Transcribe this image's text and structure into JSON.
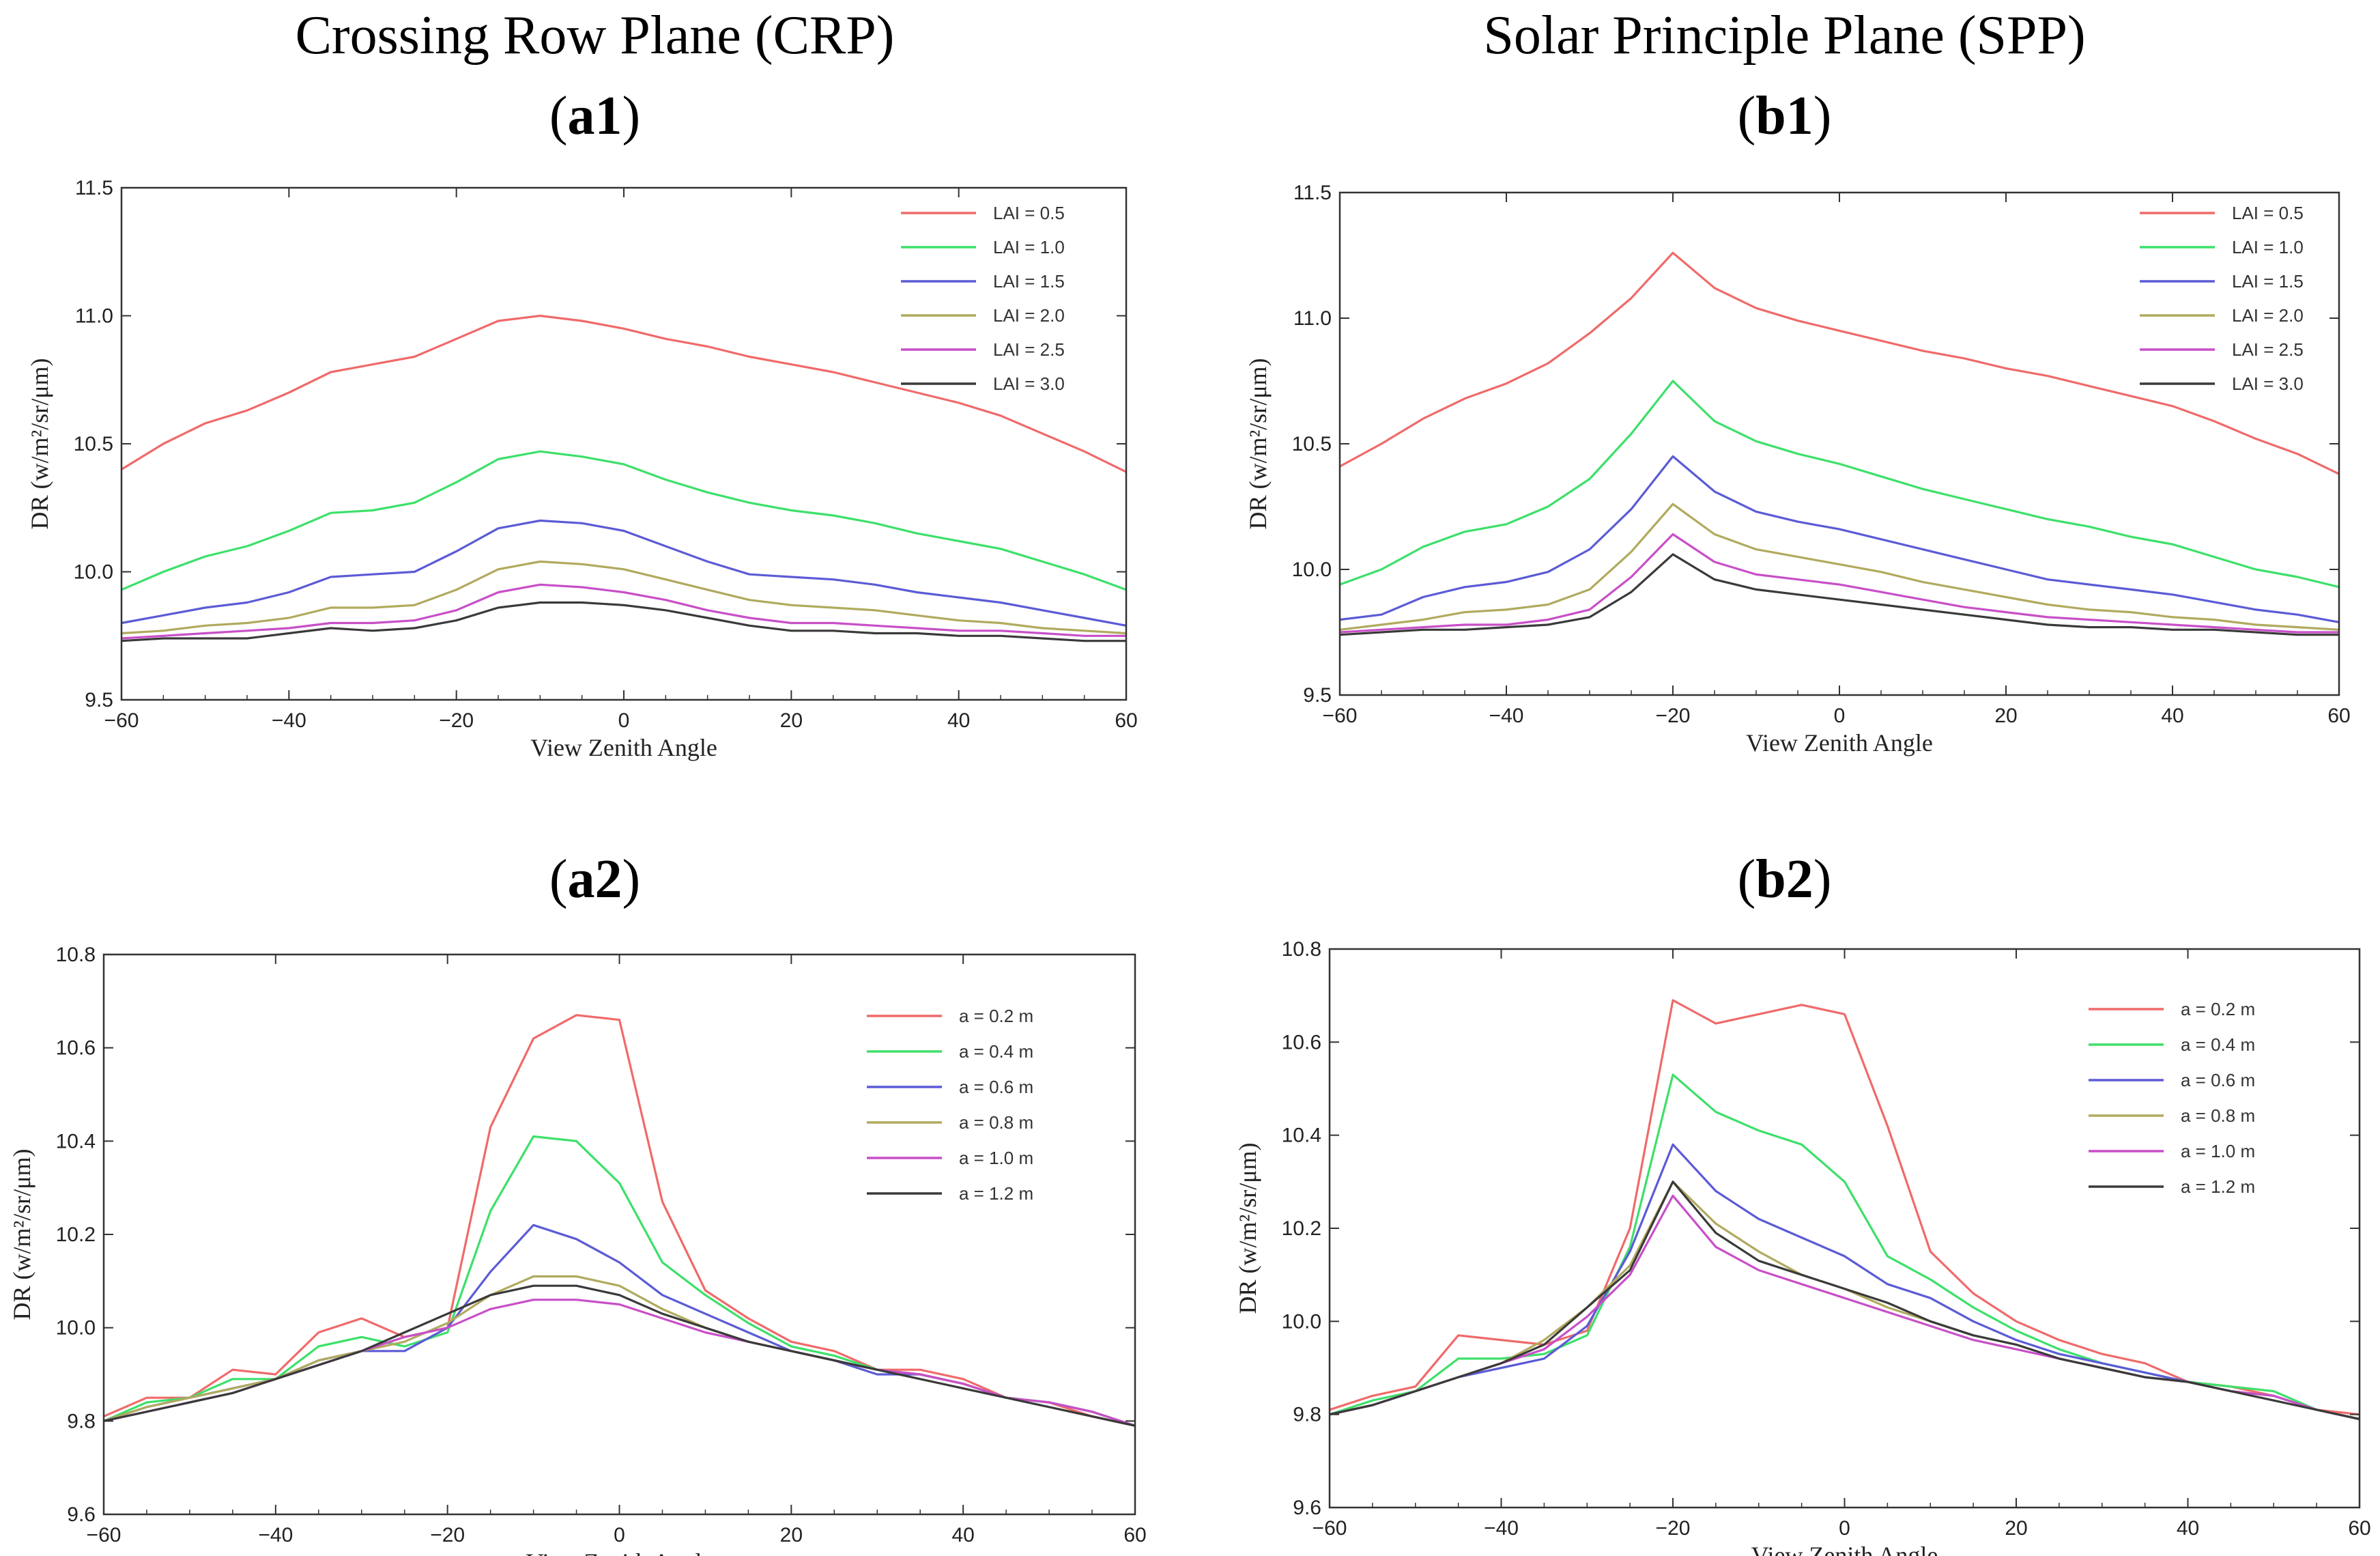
{
  "columns": {
    "left_title": "Crossing Row Plane (CRP)",
    "right_title": "Solar Principle Plane (SPP)"
  },
  "panel_labels": {
    "a1": {
      "open": "(",
      "bold": "a1",
      "close": ")"
    },
    "b1": {
      "open": "(",
      "bold": "b1",
      "close": ")"
    },
    "a2": {
      "open": "(",
      "bold": "a2",
      "close": ")"
    },
    "b2": {
      "open": "(",
      "bold": "b2",
      "close": ")"
    }
  },
  "chart_data": [
    {
      "id": "a1",
      "type": "line",
      "xlabel": "View Zenith Angle",
      "ylabel": "DR (w/m²/sr/μm)",
      "xlim": [
        -60,
        60
      ],
      "ylim": [
        9.5,
        11.5
      ],
      "xticks": [
        -60,
        -40,
        -20,
        0,
        20,
        40,
        60
      ],
      "xtick_labels": [
        "−60",
        "−40",
        "−20",
        "0",
        "20",
        "40",
        "60"
      ],
      "yticks": [
        9.5,
        10.0,
        10.5,
        11.0,
        11.5
      ],
      "ytick_labels": [
        "9.5",
        "10.0",
        "10.5",
        "11.0",
        "11.5"
      ],
      "legend_position": "top-right",
      "x": [
        -60,
        -55,
        -50,
        -45,
        -40,
        -35,
        -30,
        -25,
        -20,
        -15,
        -10,
        -5,
        0,
        5,
        10,
        15,
        20,
        25,
        30,
        35,
        40,
        45,
        50,
        55,
        60
      ],
      "series": [
        {
          "name": "LAI = 0.5",
          "color": "#f06a6a",
          "values": [
            10.4,
            10.5,
            10.58,
            10.63,
            10.7,
            10.78,
            10.81,
            10.84,
            10.91,
            10.98,
            11.0,
            10.98,
            10.95,
            10.91,
            10.88,
            10.84,
            10.81,
            10.78,
            10.74,
            10.7,
            10.66,
            10.61,
            10.54,
            10.47,
            10.39
          ]
        },
        {
          "name": "LAI = 1.0",
          "color": "#3de06a",
          "values": [
            9.93,
            10.0,
            10.06,
            10.1,
            10.16,
            10.23,
            10.24,
            10.27,
            10.35,
            10.44,
            10.47,
            10.45,
            10.42,
            10.36,
            10.31,
            10.27,
            10.24,
            10.22,
            10.19,
            10.15,
            10.12,
            10.09,
            10.04,
            9.99,
            9.93
          ]
        },
        {
          "name": "LAI = 1.5",
          "color": "#5b5bd6",
          "values": [
            9.8,
            9.83,
            9.86,
            9.88,
            9.92,
            9.98,
            9.99,
            10.0,
            10.08,
            10.17,
            10.2,
            10.19,
            10.16,
            10.1,
            10.04,
            9.99,
            9.98,
            9.97,
            9.95,
            9.92,
            9.9,
            9.88,
            9.85,
            9.82,
            9.79
          ]
        },
        {
          "name": "LAI = 2.0",
          "color": "#b0aa5e",
          "values": [
            9.76,
            9.77,
            9.79,
            9.8,
            9.82,
            9.86,
            9.86,
            9.87,
            9.93,
            10.01,
            10.04,
            10.03,
            10.01,
            9.97,
            9.93,
            9.89,
            9.87,
            9.86,
            9.85,
            9.83,
            9.81,
            9.8,
            9.78,
            9.77,
            9.76
          ]
        },
        {
          "name": "LAI = 2.5",
          "color": "#c84fc8",
          "values": [
            9.74,
            9.75,
            9.76,
            9.77,
            9.78,
            9.8,
            9.8,
            9.81,
            9.85,
            9.92,
            9.95,
            9.94,
            9.92,
            9.89,
            9.85,
            9.82,
            9.8,
            9.8,
            9.79,
            9.78,
            9.77,
            9.77,
            9.76,
            9.75,
            9.75
          ]
        },
        {
          "name": "LAI = 3.0",
          "color": "#3a3a3a",
          "values": [
            9.73,
            9.74,
            9.74,
            9.74,
            9.76,
            9.78,
            9.77,
            9.78,
            9.81,
            9.86,
            9.88,
            9.88,
            9.87,
            9.85,
            9.82,
            9.79,
            9.77,
            9.77,
            9.76,
            9.76,
            9.75,
            9.75,
            9.74,
            9.73,
            9.73
          ]
        }
      ]
    },
    {
      "id": "b1",
      "type": "line",
      "xlabel": "View Zenith Angle",
      "ylabel": "DR (w/m²/sr/μm)",
      "xlim": [
        -60,
        60
      ],
      "ylim": [
        9.5,
        11.5
      ],
      "xticks": [
        -60,
        -40,
        -20,
        0,
        20,
        40,
        60
      ],
      "xtick_labels": [
        "−60",
        "−40",
        "−20",
        "0",
        "20",
        "40",
        "60"
      ],
      "yticks": [
        9.5,
        10.0,
        10.5,
        11.0,
        11.5
      ],
      "ytick_labels": [
        "9.5",
        "10.0",
        "10.5",
        "11.0",
        "11.5"
      ],
      "legend_position": "top-right",
      "x": [
        -60,
        -55,
        -50,
        -45,
        -40,
        -35,
        -30,
        -25,
        -20,
        -15,
        -10,
        -5,
        0,
        5,
        10,
        15,
        20,
        25,
        30,
        35,
        40,
        45,
        50,
        55,
        60
      ],
      "series": [
        {
          "name": "LAI = 0.5",
          "color": "#f06a6a",
          "values": [
            10.41,
            10.5,
            10.6,
            10.68,
            10.74,
            10.82,
            10.94,
            11.08,
            11.26,
            11.12,
            11.04,
            10.99,
            10.95,
            10.91,
            10.87,
            10.84,
            10.8,
            10.77,
            10.73,
            10.69,
            10.65,
            10.59,
            10.52,
            10.46,
            10.38
          ]
        },
        {
          "name": "LAI = 1.0",
          "color": "#3de06a",
          "values": [
            9.94,
            10.0,
            10.09,
            10.15,
            10.18,
            10.25,
            10.36,
            10.54,
            10.75,
            10.59,
            10.51,
            10.46,
            10.42,
            10.37,
            10.32,
            10.28,
            10.24,
            10.2,
            10.17,
            10.13,
            10.1,
            10.05,
            10.0,
            9.97,
            9.93
          ]
        },
        {
          "name": "LAI = 1.5",
          "color": "#5b5bd6",
          "values": [
            9.8,
            9.82,
            9.89,
            9.93,
            9.95,
            9.99,
            10.08,
            10.24,
            10.45,
            10.31,
            10.23,
            10.19,
            10.16,
            10.12,
            10.08,
            10.04,
            10.0,
            9.96,
            9.94,
            9.92,
            9.9,
            9.87,
            9.84,
            9.82,
            9.79
          ]
        },
        {
          "name": "LAI = 2.0",
          "color": "#b0aa5e",
          "values": [
            9.76,
            9.78,
            9.8,
            9.83,
            9.84,
            9.86,
            9.92,
            10.07,
            10.26,
            10.14,
            10.08,
            10.05,
            10.02,
            9.99,
            9.95,
            9.92,
            9.89,
            9.86,
            9.84,
            9.83,
            9.81,
            9.8,
            9.78,
            9.77,
            9.76
          ]
        },
        {
          "name": "LAI = 2.5",
          "color": "#c84fc8",
          "values": [
            9.75,
            9.76,
            9.77,
            9.78,
            9.78,
            9.8,
            9.84,
            9.97,
            10.14,
            10.03,
            9.98,
            9.96,
            9.94,
            9.91,
            9.88,
            9.85,
            9.83,
            9.81,
            9.8,
            9.79,
            9.78,
            9.77,
            9.76,
            9.75,
            9.75
          ]
        },
        {
          "name": "LAI = 3.0",
          "color": "#3a3a3a",
          "values": [
            9.74,
            9.75,
            9.76,
            9.76,
            9.77,
            9.78,
            9.81,
            9.91,
            10.06,
            9.96,
            9.92,
            9.9,
            9.88,
            9.86,
            9.84,
            9.82,
            9.8,
            9.78,
            9.77,
            9.77,
            9.76,
            9.76,
            9.75,
            9.74,
            9.74
          ]
        }
      ]
    },
    {
      "id": "a2",
      "type": "line",
      "xlabel": "View Zenith Angle",
      "ylabel": "DR (w/m²/sr/μm)",
      "xlim": [
        -60,
        60
      ],
      "ylim": [
        9.6,
        10.8
      ],
      "xticks": [
        -60,
        -40,
        -20,
        0,
        20,
        40,
        60
      ],
      "xtick_labels": [
        "−60",
        "−40",
        "−20",
        "0",
        "20",
        "40",
        "60"
      ],
      "yticks": [
        9.6,
        9.8,
        10.0,
        10.2,
        10.4,
        10.6,
        10.8
      ],
      "ytick_labels": [
        "9.6",
        "9.8",
        "10.0",
        "10.2",
        "10.4",
        "10.6",
        "10.8"
      ],
      "legend_position": "top-right",
      "x": [
        -60,
        -55,
        -50,
        -45,
        -40,
        -35,
        -30,
        -25,
        -20,
        -15,
        -10,
        -5,
        0,
        5,
        10,
        15,
        20,
        25,
        30,
        35,
        40,
        45,
        50,
        55,
        60
      ],
      "series": [
        {
          "name": "a = 0.2 m",
          "color": "#f06a6a",
          "values": [
            9.81,
            9.85,
            9.85,
            9.91,
            9.9,
            9.99,
            10.02,
            9.98,
            10.0,
            10.43,
            10.62,
            10.67,
            10.66,
            10.27,
            10.08,
            10.02,
            9.97,
            9.95,
            9.91,
            9.91,
            9.89,
            9.85,
            9.84,
            9.81,
            9.79
          ]
        },
        {
          "name": "a = 0.4 m",
          "color": "#3de06a",
          "values": [
            9.8,
            9.84,
            9.85,
            9.89,
            9.89,
            9.96,
            9.98,
            9.96,
            9.99,
            10.25,
            10.41,
            10.4,
            10.31,
            10.14,
            10.07,
            10.01,
            9.96,
            9.94,
            9.91,
            9.9,
            9.88,
            9.85,
            9.84,
            9.82,
            9.79
          ]
        },
        {
          "name": "a = 0.6 m",
          "color": "#5b5bd6",
          "values": [
            9.8,
            9.83,
            9.85,
            9.87,
            9.89,
            9.93,
            9.95,
            9.95,
            10.0,
            10.12,
            10.22,
            10.19,
            10.14,
            10.07,
            10.03,
            9.99,
            9.95,
            9.93,
            9.9,
            9.9,
            9.88,
            9.85,
            9.84,
            9.82,
            9.79
          ]
        },
        {
          "name": "a = 0.8 m",
          "color": "#b0aa5e",
          "values": [
            9.8,
            9.83,
            9.85,
            9.87,
            9.89,
            9.93,
            9.95,
            9.97,
            10.01,
            10.07,
            10.11,
            10.11,
            10.09,
            10.04,
            10.0,
            9.97,
            9.95,
            9.93,
            9.91,
            9.9,
            9.88,
            9.85,
            9.84,
            9.82,
            9.79
          ]
        },
        {
          "name": "a = 1.0 m",
          "color": "#c84fc8",
          "values": [
            9.8,
            9.82,
            9.84,
            9.86,
            9.89,
            9.92,
            9.95,
            9.98,
            10.0,
            10.04,
            10.06,
            10.06,
            10.05,
            10.02,
            9.99,
            9.97,
            9.95,
            9.93,
            9.91,
            9.9,
            9.88,
            9.85,
            9.84,
            9.82,
            9.79
          ]
        },
        {
          "name": "a = 1.2 m",
          "color": "#3a3a3a",
          "values": [
            9.8,
            9.82,
            9.84,
            9.86,
            9.89,
            9.92,
            9.95,
            9.99,
            10.03,
            10.07,
            10.09,
            10.09,
            10.07,
            10.03,
            10.0,
            9.97,
            9.95,
            9.93,
            9.91,
            9.89,
            9.87,
            9.85,
            9.83,
            9.81,
            9.79
          ]
        }
      ]
    },
    {
      "id": "b2",
      "type": "line",
      "xlabel": "View Zenith Angle",
      "ylabel": "DR (w/m²/sr/μm)",
      "xlim": [
        -60,
        60
      ],
      "ylim": [
        9.6,
        10.8
      ],
      "xticks": [
        -60,
        -40,
        -20,
        0,
        20,
        40,
        60
      ],
      "xtick_labels": [
        "−60",
        "−40",
        "−20",
        "0",
        "20",
        "40",
        "60"
      ],
      "yticks": [
        9.6,
        9.8,
        10.0,
        10.2,
        10.4,
        10.6,
        10.8
      ],
      "ytick_labels": [
        "9.6",
        "9.8",
        "10.0",
        "10.2",
        "10.4",
        "10.6",
        "10.8"
      ],
      "legend_position": "top-right",
      "x": [
        -60,
        -55,
        -50,
        -45,
        -40,
        -35,
        -30,
        -25,
        -20,
        -15,
        -10,
        -5,
        0,
        5,
        10,
        15,
        20,
        25,
        30,
        35,
        40,
        45,
        50,
        55,
        60
      ],
      "series": [
        {
          "name": "a = 0.2 m",
          "color": "#f06a6a",
          "values": [
            9.81,
            9.84,
            9.86,
            9.97,
            9.96,
            9.95,
            9.98,
            10.2,
            10.69,
            10.64,
            10.66,
            10.68,
            10.66,
            10.42,
            10.15,
            10.06,
            10.0,
            9.96,
            9.93,
            9.91,
            9.87,
            9.86,
            9.84,
            9.81,
            9.8
          ]
        },
        {
          "name": "a = 0.4 m",
          "color": "#3de06a",
          "values": [
            9.8,
            9.83,
            9.85,
            9.92,
            9.92,
            9.93,
            9.97,
            10.16,
            10.53,
            10.45,
            10.41,
            10.38,
            10.3,
            10.14,
            10.09,
            10.03,
            9.98,
            9.94,
            9.91,
            9.89,
            9.87,
            9.86,
            9.85,
            9.81,
            9.79
          ]
        },
        {
          "name": "a = 0.6 m",
          "color": "#5b5bd6",
          "values": [
            9.8,
            9.82,
            9.85,
            9.88,
            9.9,
            9.92,
            9.99,
            10.15,
            10.38,
            10.28,
            10.22,
            10.18,
            10.14,
            10.08,
            10.05,
            10.0,
            9.96,
            9.93,
            9.91,
            9.89,
            9.87,
            9.85,
            9.84,
            9.81,
            9.79
          ]
        },
        {
          "name": "a = 0.8 m",
          "color": "#b0aa5e",
          "values": [
            9.8,
            9.82,
            9.85,
            9.88,
            9.91,
            9.96,
            10.03,
            10.12,
            10.3,
            10.21,
            10.15,
            10.1,
            10.07,
            10.03,
            10.0,
            9.97,
            9.95,
            9.92,
            9.9,
            9.88,
            9.87,
            9.85,
            9.84,
            9.81,
            9.79
          ]
        },
        {
          "name": "a = 1.0 m",
          "color": "#c84fc8",
          "values": [
            9.8,
            9.82,
            9.85,
            9.88,
            9.91,
            9.94,
            10.01,
            10.1,
            10.27,
            10.16,
            10.11,
            10.08,
            10.05,
            10.02,
            9.99,
            9.96,
            9.94,
            9.92,
            9.9,
            9.88,
            9.87,
            9.85,
            9.84,
            9.81,
            9.79
          ]
        },
        {
          "name": "a = 1.2 m",
          "color": "#3a3a3a",
          "values": [
            9.8,
            9.82,
            9.85,
            9.88,
            9.91,
            9.95,
            10.03,
            10.11,
            10.3,
            10.19,
            10.13,
            10.1,
            10.07,
            10.04,
            10.0,
            9.97,
            9.95,
            9.92,
            9.9,
            9.88,
            9.87,
            9.85,
            9.83,
            9.81,
            9.79
          ]
        }
      ]
    }
  ]
}
